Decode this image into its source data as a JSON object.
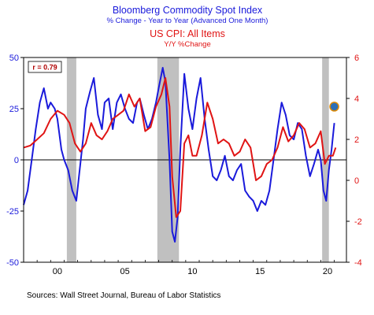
{
  "chart_data": {
    "type": "line",
    "title": "Bloomberg Commodity Spot Index",
    "subtitle": "% Change - Year to Year   (Advanced One Month)",
    "title2": "US CPI: All Items",
    "subtitle2": "Y/Y %Change",
    "annotation": "r = 0.79",
    "source": "Sources:  Wall Street Journal, Bureau of Labor Statistics",
    "x_ticks": [
      "00",
      "05",
      "10",
      "15",
      "20"
    ],
    "y_left_ticks": [
      "50",
      "25",
      "0",
      "-25",
      "-50"
    ],
    "y_right_ticks": [
      "6",
      "4",
      "2",
      "0",
      "-2",
      "-4"
    ],
    "y_left_range": [
      -50,
      50
    ],
    "y_right_range": [
      -4,
      6
    ],
    "x_range": [
      1998.0,
      2021.9
    ],
    "recessions": [
      [
        2001.2,
        2001.9
      ],
      [
        2007.9,
        2009.5
      ],
      [
        2020.1,
        2020.6
      ]
    ],
    "marker": {
      "x": 2021.0,
      "y": 3.6
    },
    "colors": {
      "commodity": "#1a1adb",
      "cpi": "#e01414",
      "left_axis": "#1a1adb",
      "right_axis": "#e01414",
      "recession": "#c0c0c0",
      "marker": "#2e6fb5"
    },
    "series": [
      {
        "name": "Bloomberg Commodity Spot Index",
        "axis": "left",
        "x": [
          1998.0,
          1998.3,
          1998.6,
          1998.9,
          1999.2,
          1999.5,
          1999.8,
          2000.0,
          2000.3,
          2000.5,
          2000.8,
          2001.0,
          2001.3,
          2001.6,
          2001.9,
          2002.1,
          2002.4,
          2002.6,
          2002.9,
          2003.2,
          2003.5,
          2003.8,
          2004.0,
          2004.3,
          2004.6,
          2004.9,
          2005.2,
          2005.5,
          2005.8,
          2006.1,
          2006.4,
          2006.6,
          2006.9,
          2007.2,
          2007.5,
          2007.8,
          2008.0,
          2008.3,
          2008.5,
          2008.8,
          2009.0,
          2009.2,
          2009.4,
          2009.6,
          2009.9,
          2010.2,
          2010.5,
          2010.8,
          2011.1,
          2011.4,
          2011.7,
          2012.0,
          2012.3,
          2012.6,
          2012.9,
          2013.2,
          2013.5,
          2013.8,
          2014.1,
          2014.4,
          2014.7,
          2015.0,
          2015.3,
          2015.6,
          2015.9,
          2016.2,
          2016.5,
          2016.8,
          2017.1,
          2017.4,
          2017.7,
          2018.0,
          2018.3,
          2018.6,
          2018.9,
          2019.2,
          2019.5,
          2019.8,
          2020.0,
          2020.2,
          2020.4,
          2020.6,
          2020.8,
          2021.0
        ],
        "y": [
          -22,
          -15,
          0,
          15,
          28,
          35,
          25,
          28,
          25,
          20,
          5,
          0,
          -5,
          -15,
          -20,
          -8,
          10,
          25,
          33,
          40,
          22,
          15,
          28,
          30,
          15,
          28,
          32,
          25,
          20,
          18,
          28,
          30,
          22,
          15,
          20,
          28,
          35,
          45,
          38,
          0,
          -35,
          -40,
          -28,
          5,
          42,
          25,
          15,
          30,
          40,
          20,
          5,
          -8,
          -10,
          -5,
          2,
          -8,
          -10,
          -5,
          -2,
          -15,
          -18,
          -20,
          -25,
          -20,
          -22,
          -15,
          0,
          15,
          28,
          22,
          12,
          10,
          18,
          15,
          2,
          -8,
          -2,
          5,
          0,
          -15,
          -20,
          -5,
          5,
          18
        ]
      },
      {
        "name": "US CPI: All Items",
        "axis": "right",
        "x": [
          1998.0,
          1998.5,
          1999.0,
          1999.5,
          2000.0,
          2000.5,
          2001.0,
          2001.4,
          2001.8,
          2002.2,
          2002.6,
          2003.0,
          2003.4,
          2003.8,
          2004.2,
          2004.6,
          2005.0,
          2005.4,
          2005.8,
          2006.2,
          2006.6,
          2007.0,
          2007.4,
          2007.8,
          2008.2,
          2008.5,
          2008.8,
          2009.0,
          2009.3,
          2009.6,
          2009.9,
          2010.2,
          2010.5,
          2010.8,
          2011.2,
          2011.6,
          2012.0,
          2012.4,
          2012.8,
          2013.2,
          2013.6,
          2014.0,
          2014.4,
          2014.8,
          2015.2,
          2015.6,
          2016.0,
          2016.4,
          2016.8,
          2017.2,
          2017.6,
          2018.0,
          2018.4,
          2018.8,
          2019.2,
          2019.6,
          2020.0,
          2020.3,
          2020.6,
          2020.9,
          2021.1
        ],
        "y": [
          1.6,
          1.7,
          2.0,
          2.3,
          3.0,
          3.4,
          3.2,
          2.8,
          1.8,
          1.4,
          1.8,
          2.8,
          2.2,
          2.0,
          2.4,
          3.0,
          3.2,
          3.4,
          4.2,
          3.6,
          4.0,
          2.4,
          2.6,
          3.6,
          4.2,
          5.0,
          3.6,
          0.2,
          -1.8,
          -1.5,
          1.8,
          2.2,
          1.2,
          1.2,
          2.2,
          3.8,
          3.0,
          1.8,
          2.0,
          1.8,
          1.2,
          1.4,
          2.0,
          1.6,
          0.0,
          0.2,
          0.8,
          1.0,
          1.6,
          2.6,
          1.9,
          2.2,
          2.8,
          2.5,
          1.6,
          1.8,
          2.4,
          0.8,
          1.2,
          1.2,
          1.6
        ]
      }
    ]
  }
}
